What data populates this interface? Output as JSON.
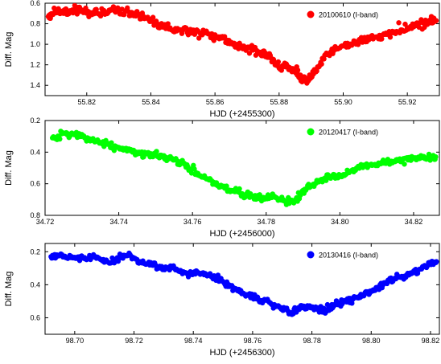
{
  "chart_data": [
    {
      "type": "scatter",
      "xlabel": "HJD (+2455300)",
      "ylabel": "Diff. Mag",
      "xlim": [
        55.807,
        55.93
      ],
      "ylim": [
        1.5,
        0.6
      ],
      "x_ticks": [
        "55.82",
        "55.84",
        "55.86",
        "55.88",
        "55.90",
        "55.92"
      ],
      "x_tick_values": [
        55.82,
        55.84,
        55.86,
        55.88,
        55.9,
        55.92
      ],
      "y_ticks": [
        "0.6",
        "0.8",
        "1.0",
        "1.2",
        "1.4"
      ],
      "y_tick_values": [
        0.6,
        0.8,
        1.0,
        1.2,
        1.4
      ],
      "y_reversed": true,
      "legend_position": "top-right",
      "series": [
        {
          "name": "20100610 (I-band)",
          "color": "#ff0000",
          "x": [
            55.808,
            55.81,
            55.812,
            55.815,
            55.818,
            55.822,
            55.826,
            55.83,
            55.834,
            55.838,
            55.842,
            55.846,
            55.85,
            55.854,
            55.858,
            55.862,
            55.866,
            55.87,
            55.873,
            55.876,
            55.879,
            55.882,
            55.885,
            55.887,
            55.889,
            55.892,
            55.895,
            55.898,
            55.902,
            55.906,
            55.91,
            55.914,
            55.918,
            55.922,
            55.926,
            55.929
          ],
          "y": [
            0.73,
            0.69,
            0.68,
            0.68,
            0.68,
            0.69,
            0.69,
            0.67,
            0.69,
            0.75,
            0.8,
            0.84,
            0.86,
            0.88,
            0.9,
            0.94,
            0.99,
            1.04,
            1.06,
            1.1,
            1.2,
            1.22,
            1.25,
            1.33,
            1.36,
            1.22,
            1.1,
            1.04,
            1.0,
            0.98,
            0.93,
            0.9,
            0.86,
            0.83,
            0.79,
            0.77
          ]
        }
      ]
    },
    {
      "type": "scatter",
      "xlabel": "HJD (+2456000)",
      "ylabel": "Diff. Mag",
      "xlim": [
        34.72,
        34.827
      ],
      "ylim": [
        0.8,
        0.2
      ],
      "x_ticks": [
        "34.72",
        "34.74",
        "34.76",
        "34.78",
        "34.80",
        "34.82"
      ],
      "x_tick_values": [
        34.72,
        34.74,
        34.76,
        34.78,
        34.8,
        34.82
      ],
      "y_ticks": [
        "0.2",
        "0.4",
        "0.6",
        "0.8"
      ],
      "y_tick_values": [
        0.2,
        0.4,
        0.6,
        0.8
      ],
      "y_reversed": true,
      "legend_position": "top-right",
      "series": [
        {
          "name": "20120417 (I-band)",
          "color": "#00ff00",
          "x": [
            34.722,
            34.725,
            34.728,
            34.731,
            34.734,
            34.737,
            34.74,
            34.743,
            34.746,
            34.749,
            34.752,
            34.755,
            34.758,
            34.761,
            34.764,
            34.767,
            34.77,
            34.773,
            34.776,
            34.779,
            34.782,
            34.785,
            34.788,
            34.791,
            34.794,
            34.797,
            34.8,
            34.803,
            34.806,
            34.809,
            34.812,
            34.815,
            34.818,
            34.821,
            34.824,
            34.826
          ],
          "y": [
            0.31,
            0.28,
            0.29,
            0.31,
            0.33,
            0.35,
            0.37,
            0.39,
            0.41,
            0.42,
            0.43,
            0.45,
            0.48,
            0.53,
            0.57,
            0.61,
            0.64,
            0.66,
            0.68,
            0.69,
            0.68,
            0.71,
            0.7,
            0.63,
            0.58,
            0.56,
            0.55,
            0.52,
            0.49,
            0.48,
            0.47,
            0.46,
            0.44,
            0.44,
            0.43,
            0.43
          ]
        }
      ]
    },
    {
      "type": "scatter",
      "xlabel": "HJD (+2456300)",
      "ylabel": "Diff. Mag",
      "xlim": [
        98.69,
        98.823
      ],
      "ylim": [
        0.7,
        0.15
      ],
      "x_ticks": [
        "98.70",
        "98.72",
        "98.74",
        "98.76",
        "98.78",
        "98.80",
        "98.82"
      ],
      "x_tick_values": [
        98.7,
        98.72,
        98.74,
        98.76,
        98.78,
        98.8,
        98.82
      ],
      "y_ticks": [
        "0.2",
        "0.4",
        "0.6"
      ],
      "y_tick_values": [
        0.2,
        0.4,
        0.6
      ],
      "y_reversed": true,
      "legend_position": "top-right",
      "series": [
        {
          "name": "20130416 (I-band)",
          "color": "#0000ff",
          "x": [
            98.692,
            98.695,
            98.699,
            98.703,
            98.707,
            98.711,
            98.715,
            98.718,
            98.722,
            98.726,
            98.73,
            98.734,
            98.738,
            98.742,
            98.746,
            98.75,
            98.754,
            98.758,
            98.762,
            98.766,
            98.77,
            98.773,
            98.776,
            98.779,
            98.782,
            98.785,
            98.788,
            98.791,
            98.794,
            98.797,
            98.8,
            98.804,
            98.808,
            98.812,
            98.816,
            98.82,
            98.822
          ],
          "y": [
            0.23,
            0.22,
            0.23,
            0.24,
            0.23,
            0.26,
            0.24,
            0.22,
            0.26,
            0.27,
            0.3,
            0.31,
            0.33,
            0.33,
            0.35,
            0.38,
            0.43,
            0.46,
            0.49,
            0.51,
            0.55,
            0.57,
            0.54,
            0.53,
            0.55,
            0.56,
            0.52,
            0.5,
            0.48,
            0.46,
            0.44,
            0.4,
            0.36,
            0.34,
            0.31,
            0.27,
            0.26
          ]
        }
      ]
    }
  ]
}
